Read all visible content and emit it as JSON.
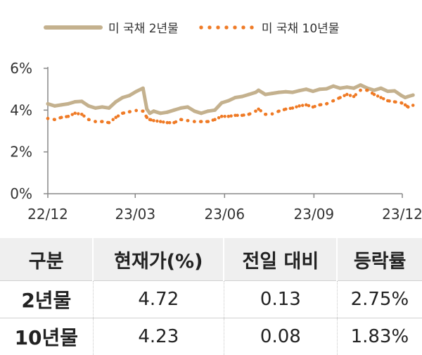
{
  "legend": {
    "series1": "미 국채 2년물",
    "series2": "미 국채 10년물"
  },
  "colors": {
    "series1": "#c4b18e",
    "series2": "#ef7a25"
  },
  "chart_data": {
    "type": "line",
    "title": "",
    "xlabel": "",
    "ylabel": "",
    "ylim": [
      0,
      6
    ],
    "yticks": [
      "0%",
      "2%",
      "4%",
      "6%"
    ],
    "xticks": [
      "22/12",
      "23/03",
      "23/06",
      "23/09",
      "23/12"
    ],
    "x_range": [
      "22/12",
      "23/12"
    ],
    "grid": false,
    "legend_position": "top",
    "series": [
      {
        "name": "미 국채 2년물",
        "style": "solid",
        "points": [
          [
            "22/12/01",
            4.3
          ],
          [
            "22/12/08",
            4.2
          ],
          [
            "22/12/15",
            4.25
          ],
          [
            "22/12/22",
            4.3
          ],
          [
            "22/12/29",
            4.4
          ],
          [
            "23/01/05",
            4.42
          ],
          [
            "23/01/12",
            4.2
          ],
          [
            "23/01/19",
            4.1
          ],
          [
            "23/01/26",
            4.15
          ],
          [
            "23/02/02",
            4.1
          ],
          [
            "23/02/09",
            4.4
          ],
          [
            "23/02/16",
            4.6
          ],
          [
            "23/02/23",
            4.7
          ],
          [
            "23/03/02",
            4.89
          ],
          [
            "23/03/09",
            5.05
          ],
          [
            "23/03/13",
            4.05
          ],
          [
            "23/03/16",
            3.85
          ],
          [
            "23/03/20",
            3.95
          ],
          [
            "23/03/27",
            3.85
          ],
          [
            "23/04/03",
            3.9
          ],
          [
            "23/04/10",
            4.0
          ],
          [
            "23/04/17",
            4.1
          ],
          [
            "23/04/24",
            4.15
          ],
          [
            "23/05/01",
            3.95
          ],
          [
            "23/05/08",
            3.85
          ],
          [
            "23/05/15",
            3.95
          ],
          [
            "23/05/22",
            4.0
          ],
          [
            "23/05/29",
            4.35
          ],
          [
            "23/06/05",
            4.45
          ],
          [
            "23/06/12",
            4.6
          ],
          [
            "23/06/19",
            4.65
          ],
          [
            "23/06/26",
            4.75
          ],
          [
            "23/07/03",
            4.85
          ],
          [
            "23/07/06",
            4.95
          ],
          [
            "23/07/13",
            4.75
          ],
          [
            "23/07/20",
            4.8
          ],
          [
            "23/07/27",
            4.85
          ],
          [
            "23/08/03",
            4.88
          ],
          [
            "23/08/10",
            4.85
          ],
          [
            "23/08/17",
            4.93
          ],
          [
            "23/08/24",
            5.0
          ],
          [
            "23/08/31",
            4.9
          ],
          [
            "23/09/07",
            5.0
          ],
          [
            "23/09/14",
            5.02
          ],
          [
            "23/09/21",
            5.15
          ],
          [
            "23/09/28",
            5.05
          ],
          [
            "23/10/05",
            5.1
          ],
          [
            "23/10/12",
            5.05
          ],
          [
            "23/10/19",
            5.2
          ],
          [
            "23/10/26",
            5.05
          ],
          [
            "23/11/02",
            4.95
          ],
          [
            "23/11/09",
            5.05
          ],
          [
            "23/11/16",
            4.9
          ],
          [
            "23/11/23",
            4.92
          ],
          [
            "23/11/30",
            4.7
          ],
          [
            "23/12/04",
            4.6
          ],
          [
            "23/12/07",
            4.65
          ],
          [
            "23/12/12",
            4.72
          ]
        ]
      },
      {
        "name": "미 국채 10년물",
        "style": "dotted",
        "points": [
          [
            "22/12/01",
            3.6
          ],
          [
            "22/12/08",
            3.55
          ],
          [
            "22/12/15",
            3.65
          ],
          [
            "22/12/22",
            3.7
          ],
          [
            "22/12/29",
            3.85
          ],
          [
            "23/01/05",
            3.8
          ],
          [
            "23/01/12",
            3.55
          ],
          [
            "23/01/19",
            3.45
          ],
          [
            "23/01/26",
            3.45
          ],
          [
            "23/02/02",
            3.4
          ],
          [
            "23/02/09",
            3.65
          ],
          [
            "23/02/16",
            3.85
          ],
          [
            "23/02/23",
            3.92
          ],
          [
            "23/03/02",
            3.98
          ],
          [
            "23/03/09",
            3.95
          ],
          [
            "23/03/13",
            3.65
          ],
          [
            "23/03/16",
            3.55
          ],
          [
            "23/03/20",
            3.5
          ],
          [
            "23/03/27",
            3.45
          ],
          [
            "23/04/03",
            3.4
          ],
          [
            "23/04/10",
            3.4
          ],
          [
            "23/04/17",
            3.55
          ],
          [
            "23/04/24",
            3.5
          ],
          [
            "23/05/01",
            3.45
          ],
          [
            "23/05/08",
            3.45
          ],
          [
            "23/05/15",
            3.45
          ],
          [
            "23/05/22",
            3.55
          ],
          [
            "23/05/29",
            3.7
          ],
          [
            "23/06/05",
            3.7
          ],
          [
            "23/06/12",
            3.75
          ],
          [
            "23/06/19",
            3.75
          ],
          [
            "23/06/26",
            3.8
          ],
          [
            "23/07/03",
            3.95
          ],
          [
            "23/07/06",
            4.05
          ],
          [
            "23/07/13",
            3.8
          ],
          [
            "23/07/20",
            3.82
          ],
          [
            "23/07/27",
            3.95
          ],
          [
            "23/08/03",
            4.05
          ],
          [
            "23/08/10",
            4.1
          ],
          [
            "23/08/17",
            4.2
          ],
          [
            "23/08/24",
            4.25
          ],
          [
            "23/08/31",
            4.15
          ],
          [
            "23/09/07",
            4.25
          ],
          [
            "23/09/14",
            4.3
          ],
          [
            "23/09/21",
            4.45
          ],
          [
            "23/09/28",
            4.6
          ],
          [
            "23/10/05",
            4.75
          ],
          [
            "23/10/12",
            4.65
          ],
          [
            "23/10/19",
            4.95
          ],
          [
            "23/10/26",
            4.95
          ],
          [
            "23/11/02",
            4.75
          ],
          [
            "23/11/09",
            4.6
          ],
          [
            "23/11/16",
            4.45
          ],
          [
            "23/11/23",
            4.4
          ],
          [
            "23/11/30",
            4.35
          ],
          [
            "23/12/04",
            4.25
          ],
          [
            "23/12/07",
            4.15
          ],
          [
            "23/12/12",
            4.23
          ]
        ]
      }
    ]
  },
  "table": {
    "headers": [
      "구분",
      "현재가(%)",
      "전일 대비",
      "등락률"
    ],
    "rows": [
      [
        "2년물",
        "4.72",
        "0.13",
        "2.75%"
      ],
      [
        "10년물",
        "4.23",
        "0.08",
        "1.83%"
      ]
    ]
  }
}
